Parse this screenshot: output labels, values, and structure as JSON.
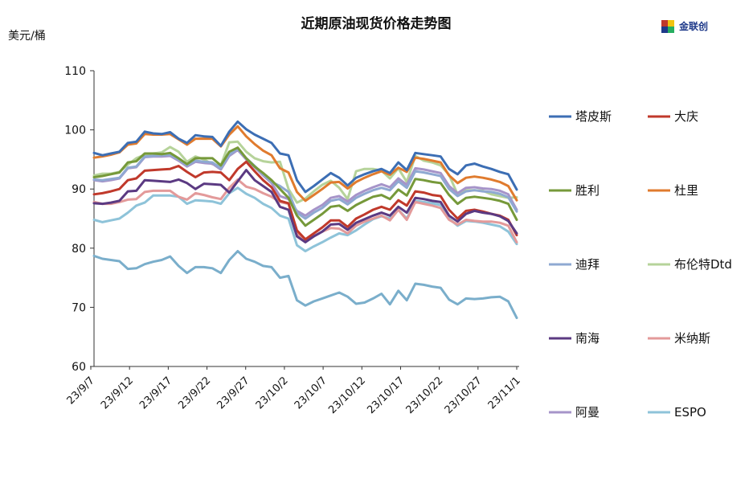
{
  "chart_data": {
    "type": "line",
    "title": "近期原油现货价格走势图",
    "ylabel": "美元/桶",
    "ylim": [
      60,
      110
    ],
    "yticks": [
      60,
      70,
      80,
      90,
      100,
      110
    ],
    "x_tick_labels": [
      "23/9/7",
      "23/9/12",
      "23/9/17",
      "23/9/22",
      "23/9/27",
      "23/10/2",
      "23/10/7",
      "23/10/12",
      "23/10/17",
      "23/10/22",
      "23/10/27",
      "23/11/1"
    ],
    "series": [
      {
        "name": "塔皮斯",
        "color": "#3c6eb4",
        "values": [
          96.1,
          95.7,
          96.0,
          96.3,
          97.8,
          98.0,
          99.7,
          99.4,
          99.3,
          99.6,
          98.5,
          97.8,
          99.1,
          98.9,
          98.8,
          97.3,
          99.7,
          101.4,
          100.1,
          99.2,
          98.5,
          97.8,
          96.0,
          95.7,
          91.5,
          89.5,
          90.5,
          91.6,
          92.7,
          91.9,
          90.6,
          91.9,
          92.5,
          93.0,
          93.4,
          92.7,
          94.5,
          93.2,
          96.1,
          95.9,
          95.7,
          95.5,
          93.4,
          92.5,
          94.0,
          94.3,
          93.8,
          93.4,
          92.9,
          92.5,
          89.9
        ]
      },
      {
        "name": "大庆",
        "color": "#c0392b",
        "values": [
          89.1,
          89.3,
          89.6,
          90.0,
          91.5,
          91.8,
          93.1,
          93.2,
          93.3,
          93.4,
          93.9,
          92.9,
          92.0,
          92.8,
          92.9,
          92.8,
          91.5,
          93.4,
          94.6,
          93.0,
          91.5,
          90.3,
          88.0,
          87.6,
          83.0,
          81.5,
          82.5,
          83.5,
          84.7,
          84.7,
          83.6,
          85.0,
          85.7,
          86.5,
          87.0,
          86.5,
          88.1,
          87.2,
          89.6,
          89.4,
          89.0,
          88.8,
          86.5,
          85.0,
          86.3,
          86.5,
          86.2,
          85.8,
          85.5,
          84.8,
          82.2
        ]
      },
      {
        "name": "胜利",
        "color": "#76993a",
        "values": [
          92.0,
          92.2,
          92.5,
          92.8,
          94.5,
          94.7,
          96.0,
          96.0,
          95.9,
          96.1,
          95.2,
          94.2,
          95.2,
          95.2,
          95.2,
          94.0,
          96.3,
          97.0,
          95.2,
          93.8,
          92.7,
          91.5,
          90.0,
          88.5,
          85.5,
          83.8,
          84.8,
          85.8,
          87.0,
          87.2,
          86.3,
          87.3,
          88.0,
          88.7,
          89.0,
          88.3,
          89.9,
          88.9,
          91.7,
          91.5,
          91.2,
          91.0,
          89.0,
          87.5,
          88.5,
          88.7,
          88.5,
          88.3,
          88.0,
          87.5,
          84.8
        ]
      },
      {
        "name": "杜里",
        "color": "#e07b2e",
        "values": [
          95.3,
          95.5,
          95.8,
          96.2,
          97.5,
          97.7,
          99.3,
          99.2,
          99.2,
          99.3,
          98.4,
          97.5,
          98.5,
          98.5,
          98.5,
          97.2,
          99.2,
          100.6,
          98.9,
          97.6,
          96.5,
          95.7,
          93.5,
          92.8,
          89.5,
          88.0,
          89.0,
          90.0,
          91.1,
          91.2,
          90.1,
          91.2,
          91.9,
          92.5,
          93.0,
          92.4,
          93.6,
          92.9,
          95.3,
          95.1,
          94.8,
          94.5,
          92.3,
          91.0,
          91.9,
          92.1,
          91.9,
          91.6,
          91.2,
          90.5,
          88.1
        ]
      },
      {
        "name": "迪拜",
        "color": "#8fa9d2",
        "values": [
          91.6,
          91.5,
          91.7,
          91.9,
          93.6,
          93.8,
          95.5,
          95.6,
          95.7,
          95.8,
          95.0,
          94.0,
          94.8,
          94.6,
          94.5,
          93.5,
          95.8,
          96.8,
          95.2,
          93.9,
          92.5,
          91.2,
          90.5,
          89.5,
          86.0,
          85.0,
          86.0,
          86.8,
          88.0,
          88.3,
          87.4,
          88.5,
          89.2,
          89.8,
          90.2,
          89.8,
          91.3,
          90.2,
          93.0,
          92.8,
          92.5,
          92.2,
          90.0,
          88.8,
          89.6,
          89.8,
          89.6,
          89.5,
          89.2,
          88.6,
          86.2
        ]
      },
      {
        "name": "布伦特Dtd",
        "color": "#b6d39a",
        "values": [
          92.3,
          92.6,
          92.6,
          92.9,
          94.1,
          95.2,
          95.8,
          96.0,
          96.2,
          97.1,
          96.3,
          94.6,
          95.5,
          95.0,
          94.2,
          94.0,
          97.9,
          98.0,
          96.3,
          95.2,
          94.7,
          94.5,
          94.6,
          90.0,
          87.7,
          88.4,
          89.6,
          90.7,
          91.4,
          90.2,
          88.3,
          93.0,
          93.4,
          93.4,
          93.1,
          91.8,
          93.5,
          91.2,
          95.6,
          94.8,
          94.5,
          94.0,
          92.4,
          89.1,
          89.8,
          89.8,
          89.7,
          89.1,
          88.8,
          88.5,
          88.6
        ]
      },
      {
        "name": "南海",
        "color": "#5b3a82",
        "values": [
          87.6,
          87.5,
          87.7,
          88.0,
          89.6,
          89.7,
          91.5,
          91.4,
          91.3,
          91.2,
          91.6,
          91.0,
          90.0,
          90.9,
          90.8,
          90.7,
          89.4,
          91.3,
          93.2,
          91.5,
          90.5,
          89.5,
          87.0,
          86.5,
          82.0,
          81.0,
          82.0,
          82.8,
          84.0,
          84.1,
          83.1,
          84.3,
          84.9,
          85.5,
          86.0,
          85.5,
          87.0,
          86.0,
          88.5,
          88.3,
          88.0,
          87.8,
          85.5,
          84.5,
          85.8,
          86.3,
          86.0,
          85.8,
          85.4,
          84.6,
          82.5
        ]
      },
      {
        "name": "米纳斯",
        "color": "#e39a9a",
        "values": [
          87.8,
          87.5,
          87.5,
          87.8,
          88.2,
          88.3,
          89.5,
          89.7,
          89.7,
          89.7,
          88.7,
          88.2,
          89.3,
          89.0,
          88.6,
          88.3,
          90.2,
          91.6,
          90.4,
          90.0,
          89.3,
          88.7,
          87.8,
          87.5,
          82.5,
          81.3,
          82.0,
          82.8,
          83.4,
          83.3,
          82.5,
          83.8,
          84.5,
          85.0,
          85.5,
          84.7,
          86.5,
          84.8,
          87.8,
          87.5,
          87.2,
          86.8,
          84.8,
          84.0,
          84.8,
          84.6,
          84.5,
          84.5,
          84.3,
          83.8,
          81.0
        ]
      },
      {
        "name": "阿曼",
        "color": "#a694c9",
        "values": [
          91.5,
          91.3,
          91.5,
          91.8,
          93.5,
          93.7,
          95.4,
          95.5,
          95.5,
          95.6,
          94.8,
          93.8,
          94.6,
          94.4,
          94.3,
          93.3,
          95.6,
          96.6,
          95.0,
          93.7,
          92.3,
          91.0,
          88.8,
          88.3,
          86.3,
          85.5,
          86.5,
          87.3,
          88.5,
          88.8,
          87.9,
          89.0,
          89.7,
          90.3,
          90.8,
          90.3,
          91.8,
          90.7,
          93.5,
          93.3,
          93.0,
          92.7,
          90.5,
          89.3,
          90.2,
          90.3,
          90.1,
          90.0,
          89.7,
          89.1,
          86.5
        ]
      },
      {
        "name": "ESPO",
        "color": "#8ec3d9",
        "values": [
          84.8,
          84.4,
          84.7,
          85.0,
          86.0,
          87.2,
          87.7,
          88.9,
          88.9,
          88.9,
          88.7,
          87.5,
          88.1,
          88.0,
          87.9,
          87.5,
          89.3,
          90.2,
          89.2,
          88.5,
          87.5,
          86.8,
          85.5,
          85.0,
          80.5,
          79.5,
          80.3,
          81.0,
          81.8,
          82.5,
          82.2,
          83.0,
          84.0,
          84.9,
          85.4,
          85.0,
          86.5,
          85.0,
          88.0,
          87.8,
          87.6,
          87.3,
          85.0,
          83.8,
          84.6,
          84.5,
          84.3,
          84.0,
          83.7,
          82.8,
          80.7
        ]
      }
    ],
    "series_overlay": {
      "color": "#7aaecb",
      "values": [
        78.7,
        78.2,
        78.0,
        77.8,
        76.5,
        76.6,
        77.3,
        77.7,
        78.0,
        78.6,
        77.0,
        75.8,
        76.8,
        76.8,
        76.6,
        75.8,
        78.0,
        79.5,
        78.2,
        77.7,
        77.0,
        76.8,
        75.0,
        75.3,
        71.2,
        70.3,
        71.0,
        71.5,
        72.0,
        72.5,
        71.8,
        70.6,
        70.8,
        71.5,
        72.3,
        70.5,
        72.8,
        71.2,
        74.0,
        73.8,
        73.5,
        73.3,
        71.3,
        70.5,
        71.5,
        71.4,
        71.5,
        71.7,
        71.8,
        71.0,
        68.2
      ]
    },
    "legend_position": "right",
    "grid": false
  },
  "logo": {
    "name": "金联创"
  }
}
